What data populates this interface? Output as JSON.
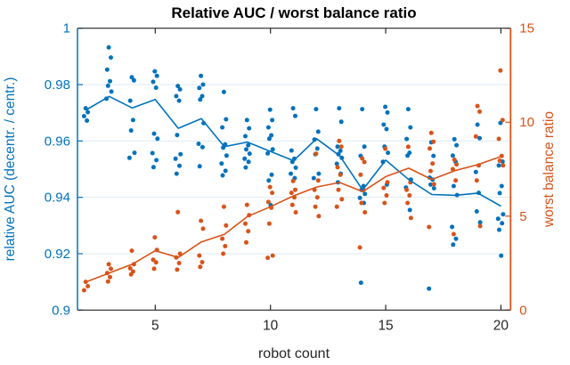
{
  "title": "Relative AUC / worst balance ratio",
  "chart_data": {
    "type": "scatter",
    "title": "Relative AUC / worst balance ratio",
    "xlabel": "robot count",
    "ylabel_left": "relative AUC (decentr. / centr.)",
    "ylabel_right": "worst balance ratio",
    "xlim": [
      1.625,
      20.42
    ],
    "x_ticks": [
      5,
      10,
      15,
      20
    ],
    "x_tick_labels": [
      "5",
      "10",
      "15",
      "20"
    ],
    "y_left": {
      "label": "relative AUC (decentr. / centr.)",
      "lim": [
        0.9,
        1.0
      ],
      "ticks": [
        0.9,
        0.92,
        0.94,
        0.96,
        0.98,
        1.0
      ],
      "tick_labels": [
        "0.9",
        "0.92",
        "0.94",
        "0.96",
        "0.98",
        "1"
      ],
      "color": "#0072BD"
    },
    "y_right": {
      "label": "worst balance ratio",
      "lim": [
        0,
        15
      ],
      "ticks": [
        0,
        5,
        10,
        15
      ],
      "tick_labels": [
        "0",
        "5",
        "10",
        "15"
      ],
      "color": "#D95319"
    },
    "grid": "horizontal",
    "gridline_values_left_axis": [
      0.92,
      0.94,
      0.96,
      0.98
    ],
    "grid_color": "#dcebf6",
    "axis_color": "#262626",
    "robots": [
      2,
      3,
      4,
      5,
      6,
      7,
      8,
      9,
      10,
      11,
      12,
      13,
      14,
      15,
      16,
      17,
      18,
      19,
      20
    ],
    "series": [
      {
        "name": "relative-auc-scatter",
        "type": "scatter",
        "axis": "left",
        "color": "#0072BD",
        "points_by_x": {
          "2": [
            0.9716,
            0.9702,
            0.9688,
            0.9672
          ],
          "3": [
            0.9932,
            0.9896,
            0.9853,
            0.9812,
            0.9796,
            0.9775,
            0.975
          ],
          "4": [
            0.9826,
            0.9815,
            0.9743,
            0.9674,
            0.9637,
            0.9558,
            0.954
          ],
          "5": [
            0.9847,
            0.9831,
            0.981,
            0.9789,
            0.9626,
            0.9608,
            0.9557,
            0.9532,
            0.9507
          ],
          "6": [
            0.9795,
            0.9783,
            0.9759,
            0.9743,
            0.9621,
            0.9553,
            0.9537,
            0.9512,
            0.9484
          ],
          "7": [
            0.9831,
            0.98,
            0.9788,
            0.9759,
            0.9747,
            0.9663,
            0.959,
            0.9578,
            0.951
          ],
          "8": [
            0.9774,
            0.9677,
            0.9648,
            0.9588,
            0.9576,
            0.9548,
            0.952,
            0.9494,
            0.9478
          ],
          "9": [
            0.9674,
            0.9645,
            0.9617,
            0.9585,
            0.957,
            0.9555,
            0.9537,
            0.9526,
            0.9506
          ],
          "10": [
            0.9711,
            0.9674,
            0.9648,
            0.962,
            0.9608,
            0.957,
            0.9556,
            0.948,
            0.946,
            0.9372
          ],
          "11": [
            0.9716,
            0.9689,
            0.9566,
            0.9537,
            0.9526,
            0.9505,
            0.9484,
            0.9468
          ],
          "12": [
            0.9713,
            0.9633,
            0.9605,
            0.9573,
            0.9553,
            0.9484,
            0.9468
          ],
          "13": [
            0.9716,
            0.9668,
            0.958,
            0.9565,
            0.9553,
            0.954,
            0.9519,
            0.9484,
            0.9453
          ],
          "14": [
            0.9713,
            0.958,
            0.9547,
            0.944,
            0.9426,
            0.9412,
            0.9398,
            0.938,
            0.9097
          ],
          "15": [
            0.9721,
            0.9701,
            0.9658,
            0.9642,
            0.958,
            0.9558,
            0.9526,
            0.9445
          ],
          "16": [
            0.9713,
            0.9648,
            0.9607,
            0.9558,
            0.9548,
            0.9463,
            0.9435,
            0.9355
          ],
          "17": [
            0.9595,
            0.9547,
            0.947,
            0.9463,
            0.9445,
            0.9432,
            0.9076
          ],
          "18": [
            0.9606,
            0.9585,
            0.9548,
            0.9526,
            0.944,
            0.9408,
            0.9295,
            0.9253,
            0.9232
          ],
          "19": [
            0.9658,
            0.961,
            0.949,
            0.9416,
            0.935,
            0.9311
          ],
          "20": [
            0.9664,
            0.9527,
            0.9513,
            0.944,
            0.9415,
            0.934,
            0.9324,
            0.9308,
            0.9285,
            0.9193
          ]
        }
      },
      {
        "name": "relative-auc-mean-line",
        "type": "line",
        "axis": "left",
        "color": "#0072BD",
        "values": [
          0.971,
          0.9758,
          0.9717,
          0.9747,
          0.9645,
          0.9679,
          0.958,
          0.9596,
          0.9563,
          0.953,
          0.9608,
          0.9548,
          0.9426,
          0.9532,
          0.9463,
          0.941,
          0.9407,
          0.9415,
          0.9369
        ]
      },
      {
        "name": "worst-balance-scatter",
        "type": "scatter",
        "axis": "right",
        "color": "#D95319",
        "points_by_x": {
          "2": [
            1.5,
            1.27,
            1.05
          ],
          "3": [
            2.44,
            2.2,
            1.97,
            1.76,
            1.52
          ],
          "4": [
            3.16,
            2.44,
            2.22,
            2.05,
            1.9
          ],
          "5": [
            3.87,
            3.2,
            2.68,
            2.54,
            2.2
          ],
          "6": [
            5.21,
            3.0,
            2.8,
            2.5,
            2.15
          ],
          "7": [
            4.75,
            4.33,
            2.9,
            2.55,
            2.3
          ],
          "8": [
            5.5,
            4.5,
            3.8,
            3.4,
            3.0
          ],
          "9": [
            5.6,
            5.05,
            4.6,
            4.2,
            3.6
          ],
          "10": [
            6.55,
            6.24,
            5.75,
            5.45,
            4.6,
            2.9,
            2.78
          ],
          "11": [
            6.87,
            6.4,
            6.24,
            6.0,
            5.6,
            5.2
          ],
          "12": [
            8.32,
            6.9,
            6.4,
            6.0,
            5.5,
            5.0
          ],
          "13": [
            9.0,
            8.7,
            7.6,
            7.2,
            6.4,
            5.9,
            5.5
          ],
          "14": [
            8.07,
            7.88,
            7.2,
            6.4,
            5.7,
            5.2,
            3.33
          ],
          "15": [
            8.59,
            6.8,
            6.5,
            6.1,
            5.7
          ],
          "16": [
            8.69,
            6.8,
            6.4,
            6.1,
            5.7,
            4.9
          ],
          "17": [
            9.43,
            8.96,
            8.6,
            7.8,
            7.4,
            6.7,
            4.42
          ],
          "18": [
            8.0,
            7.75,
            7.5,
            6.9,
            4.04
          ],
          "19": [
            10.86,
            10.56,
            9.24,
            7.7,
            6.9,
            4.47
          ],
          "20": [
            12.75,
            10.11,
            9.11,
            8.2,
            7.95,
            7.7
          ]
        }
      },
      {
        "name": "worst-balance-mean-line",
        "type": "line",
        "axis": "right",
        "color": "#D95319",
        "values": [
          1.5,
          1.97,
          2.44,
          3.16,
          2.8,
          3.63,
          4.03,
          4.98,
          5.5,
          6.08,
          6.55,
          6.79,
          6.3,
          7.1,
          7.55,
          6.95,
          7.42,
          7.74,
          8.17
        ]
      }
    ]
  }
}
